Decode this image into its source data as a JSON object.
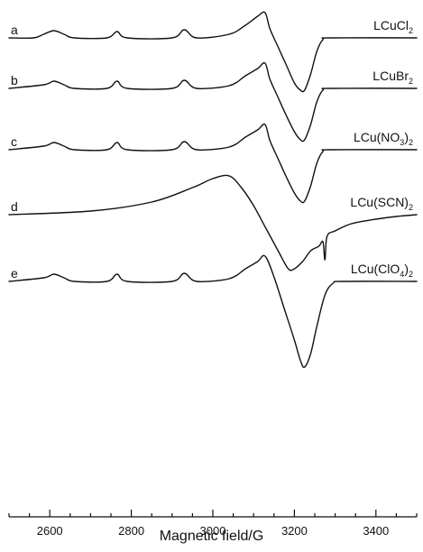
{
  "chart_data": {
    "type": "line",
    "title": "",
    "xlabel": "Magnetic field/G",
    "ylabel": "",
    "xlim": [
      2500,
      3500
    ],
    "xticks": [
      2600,
      2800,
      3000,
      3200,
      3400
    ],
    "x_minor_step": 50,
    "grid": false,
    "series": [
      {
        "letter": "a",
        "name": {
          "pre": "LCuCl",
          "sub": "2",
          "post": ""
        },
        "baseline": 42,
        "points": [
          [
            2500,
            0
          ],
          [
            2560,
            0
          ],
          [
            2585,
            -4
          ],
          [
            2610,
            -8
          ],
          [
            2635,
            -4
          ],
          [
            2660,
            0
          ],
          [
            2740,
            0
          ],
          [
            2765,
            -7
          ],
          [
            2790,
            0
          ],
          [
            2900,
            0
          ],
          [
            2930,
            -9
          ],
          [
            2960,
            0
          ],
          [
            3040,
            -4
          ],
          [
            3080,
            -14
          ],
          [
            3110,
            -24
          ],
          [
            3128,
            -28
          ],
          [
            3140,
            -10
          ],
          [
            3160,
            10
          ],
          [
            3180,
            30
          ],
          [
            3200,
            50
          ],
          [
            3215,
            58
          ],
          [
            3225,
            58
          ],
          [
            3240,
            40
          ],
          [
            3255,
            15
          ],
          [
            3270,
            2
          ],
          [
            3290,
            0
          ],
          [
            3500,
            0
          ]
        ]
      },
      {
        "letter": "b",
        "name": {
          "pre": "LCuBr",
          "sub": "2",
          "post": ""
        },
        "baseline": 98,
        "points": [
          [
            2500,
            0
          ],
          [
            2585,
            -4
          ],
          [
            2610,
            -8
          ],
          [
            2635,
            -4
          ],
          [
            2660,
            0
          ],
          [
            2740,
            0
          ],
          [
            2765,
            -8
          ],
          [
            2790,
            0
          ],
          [
            2900,
            0
          ],
          [
            2930,
            -9
          ],
          [
            2960,
            0
          ],
          [
            3040,
            -3
          ],
          [
            3080,
            -14
          ],
          [
            3110,
            -22
          ],
          [
            3128,
            -28
          ],
          [
            3140,
            -10
          ],
          [
            3160,
            10
          ],
          [
            3180,
            30
          ],
          [
            3200,
            48
          ],
          [
            3215,
            57
          ],
          [
            3225,
            57
          ],
          [
            3240,
            40
          ],
          [
            3255,
            15
          ],
          [
            3270,
            2
          ],
          [
            3290,
            0
          ],
          [
            3500,
            0
          ]
        ]
      },
      {
        "letter": "c",
        "name": {
          "pre": "LCu(NO",
          "sub": "3",
          "post": ")"
        },
        "baseline": 166,
        "points": [
          [
            2500,
            0
          ],
          [
            2585,
            -4
          ],
          [
            2610,
            -8
          ],
          [
            2635,
            -4
          ],
          [
            2660,
            0
          ],
          [
            2740,
            0
          ],
          [
            2765,
            -8
          ],
          [
            2790,
            0
          ],
          [
            2900,
            0
          ],
          [
            2930,
            -9
          ],
          [
            2960,
            0
          ],
          [
            3040,
            -3
          ],
          [
            3080,
            -14
          ],
          [
            3110,
            -22
          ],
          [
            3128,
            -28
          ],
          [
            3140,
            -10
          ],
          [
            3160,
            10
          ],
          [
            3180,
            30
          ],
          [
            3200,
            48
          ],
          [
            3215,
            57
          ],
          [
            3225,
            57
          ],
          [
            3240,
            40
          ],
          [
            3255,
            15
          ],
          [
            3270,
            2
          ],
          [
            3290,
            0
          ],
          [
            3500,
            0
          ]
        ]
      },
      {
        "letter": "d",
        "name": {
          "pre": "LCu(SCN)",
          "sub": "2",
          "post": ""
        },
        "baseline": 238,
        "points": [
          [
            2500,
            0
          ],
          [
            2700,
            -4
          ],
          [
            2850,
            -14
          ],
          [
            2950,
            -30
          ],
          [
            3000,
            -40
          ],
          [
            3040,
            -43
          ],
          [
            3070,
            -30
          ],
          [
            3100,
            -10
          ],
          [
            3130,
            15
          ],
          [
            3160,
            40
          ],
          [
            3185,
            60
          ],
          [
            3200,
            60
          ],
          [
            3220,
            52
          ],
          [
            3240,
            40
          ],
          [
            3260,
            35
          ],
          [
            3270,
            30
          ],
          [
            3275,
            50
          ],
          [
            3280,
            24
          ],
          [
            3300,
            18
          ],
          [
            3340,
            10
          ],
          [
            3400,
            5
          ],
          [
            3450,
            2
          ],
          [
            3500,
            0
          ]
        ]
      },
      {
        "letter": "e",
        "name": {
          "pre": "LCu(ClO",
          "sub": "4",
          "post": ")"
        },
        "baseline": 312,
        "points": [
          [
            2500,
            0
          ],
          [
            2585,
            -4
          ],
          [
            2610,
            -8
          ],
          [
            2635,
            -4
          ],
          [
            2660,
            0
          ],
          [
            2740,
            0
          ],
          [
            2765,
            -8
          ],
          [
            2790,
            0
          ],
          [
            2900,
            0
          ],
          [
            2930,
            -9
          ],
          [
            2960,
            0
          ],
          [
            3040,
            -3
          ],
          [
            3080,
            -14
          ],
          [
            3110,
            -22
          ],
          [
            3128,
            -28
          ],
          [
            3150,
            -5
          ],
          [
            3175,
            30
          ],
          [
            3200,
            65
          ],
          [
            3215,
            88
          ],
          [
            3225,
            95
          ],
          [
            3240,
            80
          ],
          [
            3255,
            50
          ],
          [
            3275,
            15
          ],
          [
            3295,
            2
          ],
          [
            3320,
            0
          ],
          [
            3500,
            0
          ]
        ]
      }
    ]
  }
}
